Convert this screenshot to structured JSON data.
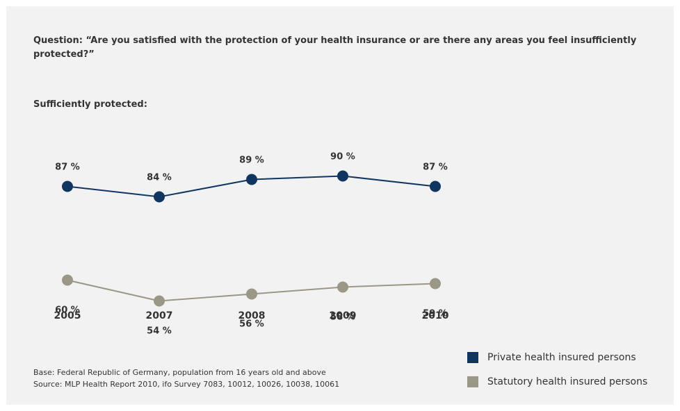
{
  "question": "Question: “Are you satisfied with the protection of your health insurance or are there any areas you feel insufficiently protected?”",
  "subtitle": "Sufficiently protected:",
  "footnote": {
    "base": "Base: Federal Republic of Germany, population from 16 years old and above",
    "source": "Source: MLP Health Report 2010, ifo Survey 7083, 10012, 10026, 10038, 10061"
  },
  "legend": [
    {
      "label": "Private health insured persons",
      "color": "#0f3560"
    },
    {
      "label": "Statutory health insured persons",
      "color": "#9a9786"
    }
  ],
  "chart_data": {
    "type": "line",
    "categories": [
      "2005",
      "2007",
      "2008",
      "2009",
      "2010"
    ],
    "series": [
      {
        "name": "Private health insured persons",
        "values": [
          87,
          84,
          89,
          90,
          87
        ],
        "labels": [
          "87 %",
          "84 %",
          "89 %",
          "90 %",
          "87 %"
        ],
        "color": "#0f3560",
        "label_position": "above"
      },
      {
        "name": "Statutory health insured persons",
        "values": [
          60,
          54,
          56,
          58,
          59
        ],
        "labels": [
          "60 %",
          "54 %",
          "56 %",
          "58 %",
          "59 %"
        ],
        "color": "#9a9786",
        "label_position": "below"
      }
    ],
    "grid": false,
    "legend_position": "bottom-right"
  }
}
